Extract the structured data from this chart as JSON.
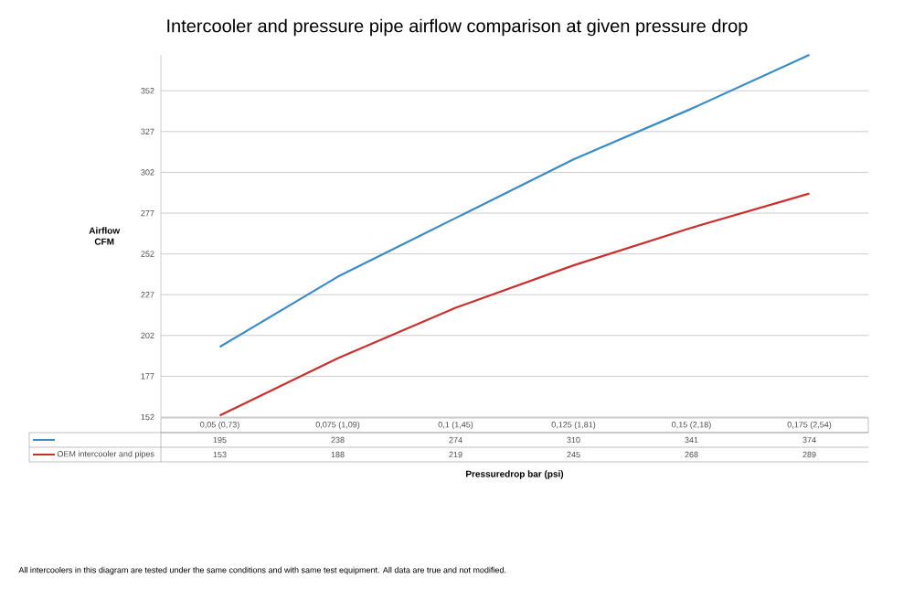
{
  "chart_data": {
    "type": "line",
    "title": "Intercooler and pressure pipe airflow comparison at given pressure drop",
    "xlabel": "Pressuredrop bar (psi)",
    "ylabel": "Airflow CFM",
    "categories": [
      "0,05 (0,73)",
      "0,075 (1,09)",
      "0,1 (1,45)",
      "0,125 (1,81)",
      "0,15 (2,18)",
      "0,175 (2,54)"
    ],
    "series": [
      {
        "color": "#3a8cc4",
        "values": [
          195,
          238,
          274,
          310,
          341,
          374
        ]
      },
      {
        "name": "OEM intercooler and pipes",
        "color": "#c8312e",
        "values": [
          153,
          188,
          219,
          245,
          268,
          289
        ]
      }
    ],
    "ylim": [
      152,
      374
    ],
    "yticks": [
      152,
      177,
      202,
      227,
      252,
      277,
      302,
      327,
      352
    ],
    "grid": "y",
    "data_labels": true,
    "marker": "none",
    "annotations": [
      "All intercoolers in this diagram are tested under the same conditions and with same test equipment. All data are true and not modified."
    ]
  }
}
